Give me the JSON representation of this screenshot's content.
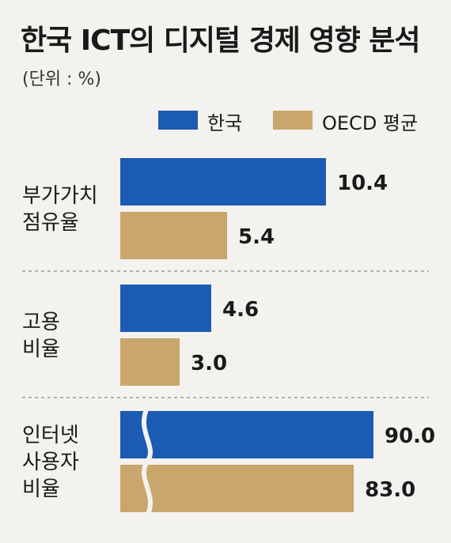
{
  "header": {
    "title": "한국 ICT의 디지털 경제 영향 분석",
    "unit": "(단위 : %)"
  },
  "colors": {
    "korea": "#1c5bb3",
    "oecd": "#c9a66b",
    "background": "#f3f2ee",
    "divider": "#9a9a9a"
  },
  "chart_data": {
    "type": "bar",
    "orientation": "horizontal",
    "title": "한국 ICT의 디지털 경제 영향 분석",
    "unit": "(단위 : %)",
    "legend_position": "top-right",
    "categories": [
      [
        "부가가치",
        "점유율"
      ],
      [
        "고용",
        "비율"
      ],
      [
        "인터넷",
        "사용자",
        "비율"
      ]
    ],
    "series": [
      {
        "name": "한국",
        "color": "#1c5bb3",
        "values": [
          10.4,
          4.6,
          90.0
        ],
        "labels": [
          "10.4",
          "4.6",
          "90.0"
        ]
      },
      {
        "name": "OECD 평균",
        "color": "#c9a66b",
        "values": [
          5.4,
          3.0,
          83.0
        ],
        "labels": [
          "5.4",
          "3.0",
          "83.0"
        ]
      }
    ],
    "axis_break_on_category": 2
  }
}
